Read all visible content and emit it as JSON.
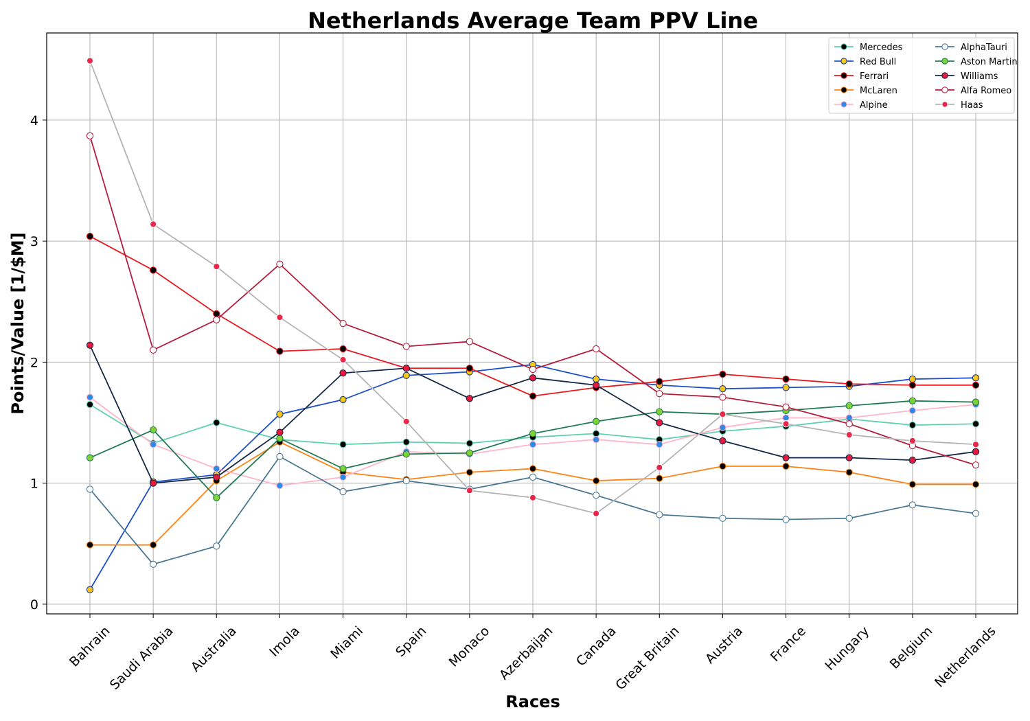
{
  "chart_data": {
    "type": "line",
    "title": "Netherlands Average Team PPV Line",
    "xlabel": "Races",
    "ylabel": "Points/Value [1/$M]",
    "categories": [
      "Bahrain",
      "Saudi Arabia",
      "Australia",
      "Imola",
      "Miami",
      "Spain",
      "Monaco",
      "Azerbaijan",
      "Canada",
      "Great Britain",
      "Austria",
      "France",
      "Hungary",
      "Belgium",
      "Netherlands"
    ],
    "yticks": [
      0,
      1,
      2,
      3,
      4
    ],
    "ylim": [
      -0.08,
      4.72
    ],
    "grid": true,
    "legend_position": "top-right",
    "legend_columns": 2,
    "series": [
      {
        "name": "Mercedes",
        "line_color": "#5fd0b0",
        "marker_fill": "#000000",
        "marker_edge": "#5fd0b0",
        "values": [
          1.65,
          1.33,
          1.5,
          1.36,
          1.32,
          1.34,
          1.33,
          1.38,
          1.41,
          1.36,
          1.43,
          1.47,
          1.53,
          1.48,
          1.49
        ]
      },
      {
        "name": "Red Bull",
        "line_color": "#1e50c8",
        "marker_fill": "#f5c518",
        "marker_edge": "#1e3a8a",
        "values": [
          0.12,
          1.01,
          1.07,
          1.57,
          1.69,
          1.89,
          1.92,
          1.98,
          1.86,
          1.81,
          1.78,
          1.79,
          1.8,
          1.86,
          1.87
        ]
      },
      {
        "name": "Ferrari",
        "line_color": "#e8191e",
        "marker_fill": "#000000",
        "marker_edge": "#e8191e",
        "values": [
          3.04,
          2.76,
          2.4,
          2.09,
          2.11,
          1.95,
          1.95,
          1.72,
          1.79,
          1.84,
          1.9,
          1.86,
          1.82,
          1.81,
          1.81
        ]
      },
      {
        "name": "McLaren",
        "line_color": "#ff8214",
        "marker_fill": "#000000",
        "marker_edge": "#ff8214",
        "values": [
          0.49,
          0.49,
          1.02,
          1.34,
          1.09,
          1.03,
          1.09,
          1.12,
          1.02,
          1.04,
          1.14,
          1.14,
          1.09,
          0.99,
          0.99
        ]
      },
      {
        "name": "Alpine",
        "line_color": "#ffb6c8",
        "marker_fill": "#2e8ae6",
        "marker_edge": "#ffb6c8",
        "values": [
          1.71,
          1.32,
          1.12,
          0.98,
          1.05,
          1.26,
          1.24,
          1.32,
          1.36,
          1.32,
          1.46,
          1.54,
          1.54,
          1.6,
          1.65
        ]
      },
      {
        "name": "AlphaTauri",
        "line_color": "#4a7894",
        "marker_fill": "#ffffff",
        "marker_edge": "#4a7894",
        "values": [
          0.95,
          0.33,
          0.48,
          1.22,
          0.93,
          1.02,
          0.95,
          1.05,
          0.9,
          0.74,
          0.71,
          0.7,
          0.71,
          0.82,
          0.75
        ]
      },
      {
        "name": "Aston Martin",
        "line_color": "#227a55",
        "marker_fill": "#7ed236",
        "marker_edge": "#227a55",
        "values": [
          1.21,
          1.44,
          0.88,
          1.37,
          1.12,
          1.24,
          1.25,
          1.41,
          1.51,
          1.59,
          1.57,
          1.6,
          1.64,
          1.68,
          1.67
        ]
      },
      {
        "name": "Williams",
        "line_color": "#142846",
        "marker_fill": "#e8193c",
        "marker_edge": "#142846",
        "values": [
          2.14,
          1.0,
          1.05,
          1.42,
          1.91,
          1.95,
          1.7,
          1.87,
          1.81,
          1.5,
          1.35,
          1.21,
          1.21,
          1.19,
          1.26
        ]
      },
      {
        "name": "Alfa Romeo",
        "line_color": "#b41e3c",
        "marker_fill": "#ffffff",
        "marker_edge": "#b41e3c",
        "values": [
          3.87,
          2.1,
          2.35,
          2.81,
          2.32,
          2.13,
          2.17,
          1.94,
          2.11,
          1.74,
          1.71,
          1.63,
          1.49,
          1.31,
          1.15
        ]
      },
      {
        "name": "Haas",
        "line_color": "#b4b4b4",
        "marker_fill": "#e8284a",
        "marker_edge": "#ffffff",
        "values": [
          4.49,
          3.14,
          2.79,
          2.37,
          2.02,
          1.51,
          0.94,
          0.88,
          0.75,
          1.13,
          1.57,
          1.49,
          1.4,
          1.35,
          1.32
        ]
      }
    ]
  }
}
